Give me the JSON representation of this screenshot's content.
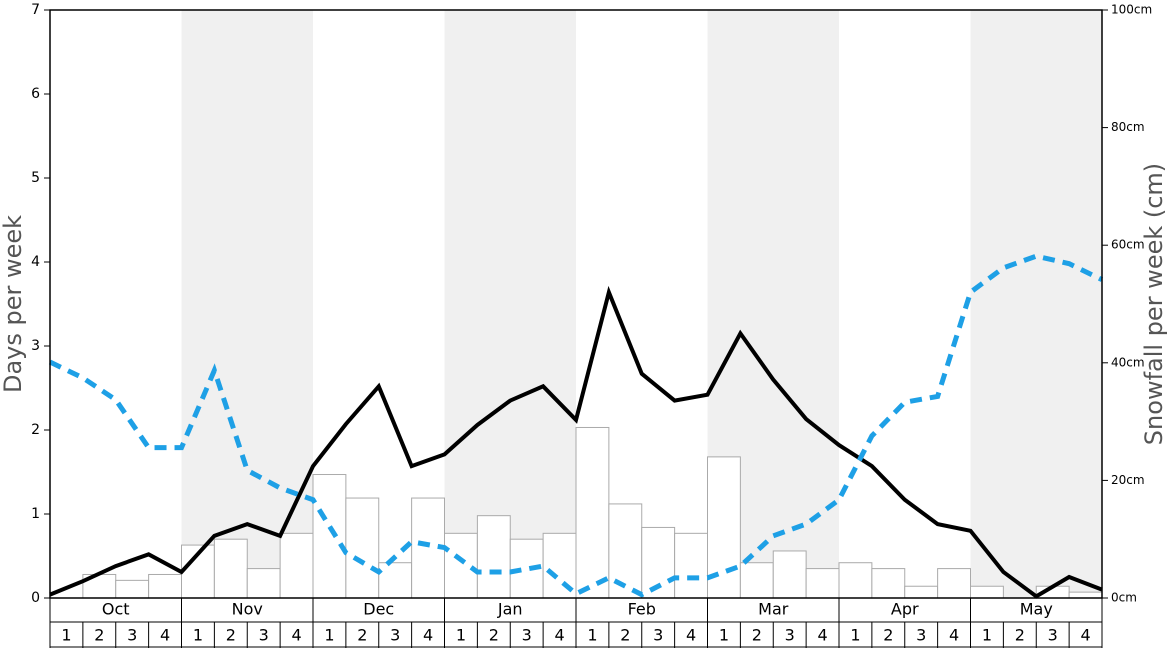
{
  "chart_data": {
    "type": "bar",
    "y_label": "Days per week",
    "y2_label": "Snowfall per week (cm)",
    "months": [
      "Oct",
      "Nov",
      "Dec",
      "Jan",
      "Feb",
      "Mar",
      "Apr",
      "May"
    ],
    "weeks": [
      "1",
      "2",
      "3",
      "4"
    ],
    "ylim": [
      0,
      7
    ],
    "yticks": [
      0,
      1,
      2,
      3,
      4,
      5,
      6,
      7
    ],
    "y2lim": [
      0,
      100
    ],
    "y2ticks": [
      {
        "value": 0,
        "label": "0cm"
      },
      {
        "value": 20,
        "label": "20cm"
      },
      {
        "value": 40,
        "label": "40cm"
      },
      {
        "value": 60,
        "label": "60cm"
      },
      {
        "value": 80,
        "label": "80cm"
      },
      {
        "value": 100,
        "label": "100cm"
      }
    ],
    "shade_color": "#f0f0f0",
    "series": [
      {
        "type": "bar",
        "axis": "y2",
        "color": "#ffffff",
        "values": [
          0,
          4,
          3,
          4,
          9,
          10,
          5,
          11,
          21,
          17,
          6,
          17,
          11,
          14,
          10,
          11,
          29,
          16,
          12,
          11,
          24,
          6,
          8,
          5,
          6,
          5,
          2,
          5,
          2,
          0,
          2,
          1
        ]
      },
      {
        "type": "line",
        "color": "#000000",
        "dashed": false,
        "values": [
          0.04,
          0.2,
          0.38,
          0.52,
          0.31,
          0.74,
          0.88,
          0.74,
          1.57,
          2.07,
          2.52,
          1.57,
          1.71,
          2.06,
          2.35,
          2.52,
          2.12,
          3.64,
          2.67,
          2.35,
          2.42,
          3.15,
          2.6,
          2.13,
          1.82,
          1.57,
          1.17,
          0.88,
          0.8,
          0.31,
          0.02,
          0.25,
          0.1
        ]
      },
      {
        "type": "line",
        "color": "#1ea0e6",
        "dashed": true,
        "values": [
          2.81,
          2.62,
          2.36,
          1.79,
          1.79,
          2.71,
          1.52,
          1.31,
          1.17,
          0.54,
          0.31,
          0.67,
          0.6,
          0.31,
          0.31,
          0.38,
          0.05,
          0.24,
          0.04,
          0.24,
          0.24,
          0.38,
          0.74,
          0.88,
          1.17,
          1.93,
          2.33,
          2.4,
          3.64,
          3.93,
          4.07,
          3.98,
          3.79
        ]
      }
    ]
  }
}
